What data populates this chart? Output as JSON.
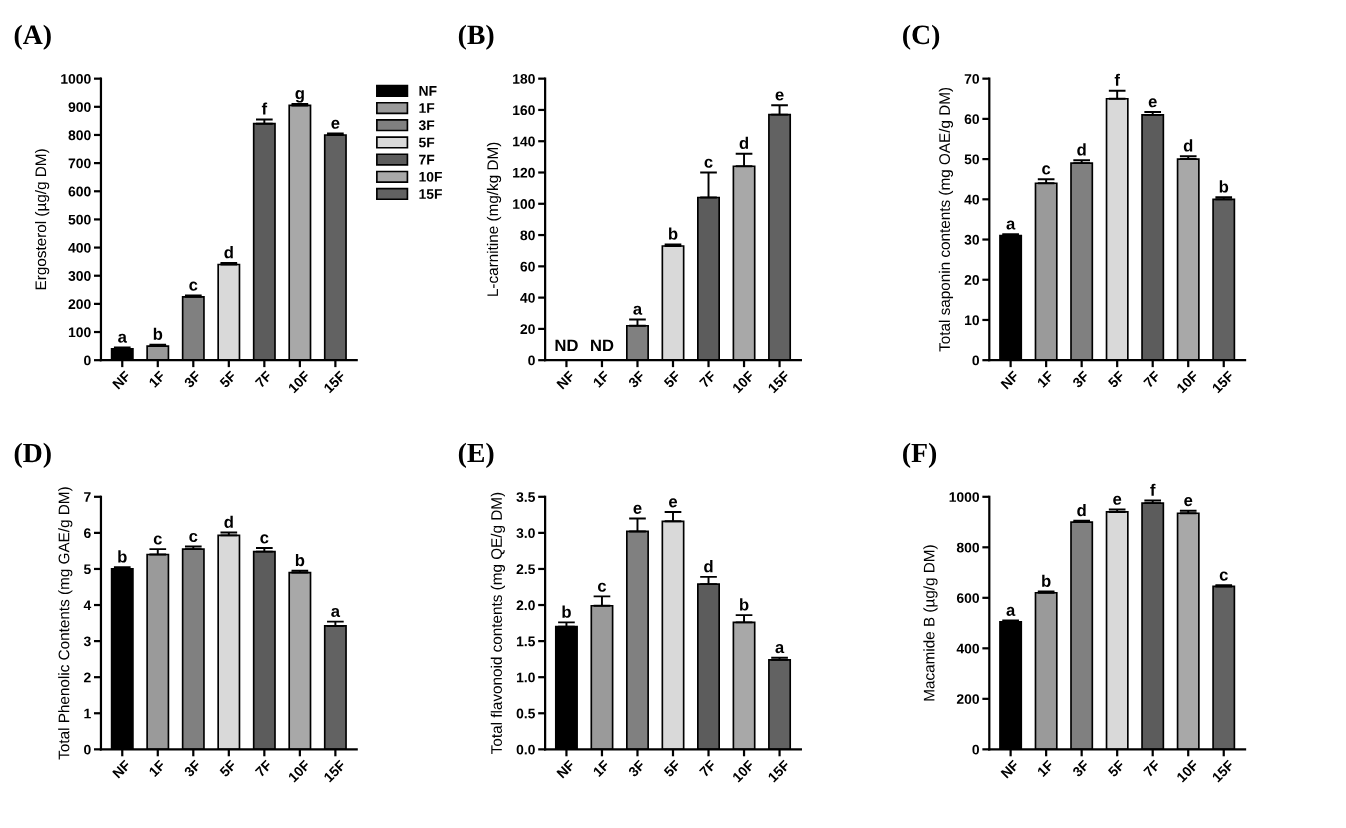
{
  "chart_data": [
    {
      "type": "bar",
      "title": "(A)",
      "ylabel": "Ergosterol (µg/g DM)",
      "categories": [
        "NF",
        "1F",
        "3F",
        "5F",
        "7F",
        "10F",
        "15F"
      ],
      "series": [
        {
          "name": "NF",
          "color": "#000000",
          "values": [
            40,
            null,
            null,
            null,
            null,
            null,
            null
          ],
          "errors": [
            [
              40,
              45
            ],
            null,
            null,
            null,
            null,
            null,
            null
          ]
        },
        {
          "name": "1F",
          "color": "#9a9a9a",
          "values": [
            null,
            50,
            null,
            null,
            null,
            null,
            null
          ],
          "errors": [
            null,
            [
              50,
              55
            ],
            null,
            null,
            null,
            null,
            null
          ]
        },
        {
          "name": "3F",
          "color": "#808080",
          "values": [
            null,
            null,
            225,
            null,
            null,
            null,
            null
          ],
          "errors": [
            null,
            null,
            [
              225,
              230
            ],
            null,
            null,
            null,
            null
          ]
        },
        {
          "name": "5F",
          "color": "#d9d9d9",
          "values": [
            null,
            null,
            null,
            340,
            null,
            null,
            null
          ],
          "errors": [
            null,
            null,
            null,
            [
              340,
              345
            ],
            null,
            null,
            null
          ]
        },
        {
          "name": "7F",
          "color": "#5c5c5c",
          "values": [
            null,
            null,
            null,
            null,
            840,
            null,
            null
          ],
          "errors": [
            null,
            null,
            null,
            null,
            [
              840,
              855
            ],
            null,
            null
          ]
        },
        {
          "name": "10F",
          "color": "#a8a8a8",
          "values": [
            null,
            null,
            null,
            null,
            null,
            905,
            null
          ],
          "errors": [
            null,
            null,
            null,
            null,
            null,
            [
              905,
              910
            ],
            null
          ]
        },
        {
          "name": "15F",
          "color": "#626262",
          "values": [
            null,
            null,
            null,
            null,
            null,
            null,
            800
          ],
          "errors": [
            null,
            null,
            null,
            null,
            null,
            null,
            [
              800,
              805
            ]
          ]
        }
      ],
      "ylim": [
        0,
        1000
      ],
      "yticks": [
        0,
        100,
        200,
        300,
        400,
        500,
        600,
        700,
        800,
        900,
        1000
      ],
      "legend": "right",
      "annotations": [
        {
          "text": "a",
          "x": "NF",
          "y": 45
        },
        {
          "text": "b",
          "x": "1F",
          "y": 55
        },
        {
          "text": "c",
          "x": "3F",
          "y": 230
        },
        {
          "text": "d",
          "x": "5F",
          "y": 345
        },
        {
          "text": "f",
          "x": "7F",
          "y": 855
        },
        {
          "text": "g",
          "x": "10F",
          "y": 910
        },
        {
          "text": "e",
          "x": "15F",
          "y": 805
        }
      ]
    },
    {
      "type": "bar",
      "title": "(B)",
      "ylabel": "L-carnitine (mg/kg DM)",
      "categories": [
        "NF",
        "1F",
        "3F",
        "5F",
        "7F",
        "10F",
        "15F"
      ],
      "values": [
        null,
        null,
        22,
        73,
        104,
        124,
        157
      ],
      "colors": [
        "#000000",
        "#9a9a9a",
        "#808080",
        "#d9d9d9",
        "#5c5c5c",
        "#a8a8a8",
        "#626262"
      ],
      "errors": [
        null,
        null,
        [
          22,
          26
        ],
        [
          73,
          74
        ],
        [
          104,
          120
        ],
        [
          124,
          132
        ],
        [
          157,
          163
        ]
      ],
      "ylim": [
        0,
        180
      ],
      "yticks": [
        0,
        20,
        40,
        60,
        80,
        100,
        120,
        140,
        160,
        180
      ],
      "annotations": [
        "ND",
        "ND",
        {
          "text": "a",
          "x": "3F",
          "y": 26
        },
        {
          "text": "b",
          "x": "5F",
          "y": 74
        },
        {
          "text": "c",
          "x": "7F",
          "y": 120
        },
        {
          "text": "d",
          "x": "10F",
          "y": 132
        },
        {
          "text": "e",
          "x": "15F",
          "y": 163
        }
      ]
    },
    {
      "type": "bar",
      "title": "(C)",
      "ylabel": "Total saponin contents (mg OAE/g DM)",
      "categories": [
        "NF",
        "1F",
        "3F",
        "5F",
        "7F",
        "10F",
        "15F"
      ],
      "values": [
        31,
        44,
        49,
        65,
        61,
        50,
        40
      ],
      "colors": [
        "#000000",
        "#9a9a9a",
        "#808080",
        "#d9d9d9",
        "#5c5c5c",
        "#a8a8a8",
        "#626262"
      ],
      "errors": [
        [
          31,
          31.3
        ],
        [
          44,
          45
        ],
        [
          49,
          49.7
        ],
        [
          65,
          67
        ],
        [
          61,
          61.7
        ],
        [
          50,
          50.7
        ],
        [
          40,
          40.5
        ]
      ],
      "ylim": [
        0,
        70
      ],
      "yticks": [
        0,
        10,
        20,
        30,
        40,
        50,
        60,
        70
      ],
      "annotations": [
        {
          "text": "a",
          "x": "NF",
          "y": 31.3
        },
        {
          "text": "c",
          "x": "1F",
          "y": 45
        },
        {
          "text": "d",
          "x": "3F",
          "y": 49.7
        },
        {
          "text": "f",
          "x": "5F",
          "y": 67
        },
        {
          "text": "e",
          "x": "7F",
          "y": 61.7
        },
        {
          "text": "d",
          "x": "10F",
          "y": 50.7
        },
        {
          "text": "b",
          "x": "15F",
          "y": 40.5
        }
      ]
    },
    {
      "type": "bar",
      "title": "(D)",
      "ylabel": "Total Phenolic Contents (mg GAE/g DM)",
      "categories": [
        "NF",
        "1F",
        "3F",
        "5F",
        "7F",
        "10F",
        "15F"
      ],
      "values": [
        5.0,
        5.4,
        5.55,
        5.93,
        5.48,
        4.9,
        3.42
      ],
      "colors": [
        "#000000",
        "#9a9a9a",
        "#808080",
        "#d9d9d9",
        "#5c5c5c",
        "#a8a8a8",
        "#626262"
      ],
      "errors": [
        [
          5.0,
          5.05
        ],
        [
          5.4,
          5.55
        ],
        [
          5.55,
          5.62
        ],
        [
          5.93,
          6.01
        ],
        [
          5.48,
          5.58
        ],
        [
          4.9,
          4.95
        ],
        [
          3.42,
          3.54
        ]
      ],
      "ylim": [
        0,
        7
      ],
      "yticks": [
        0,
        1,
        2,
        3,
        4,
        5,
        6,
        7
      ],
      "annotations": [
        {
          "text": "b",
          "x": "NF",
          "y": 5.05
        },
        {
          "text": "c",
          "x": "1F",
          "y": 5.55
        },
        {
          "text": "c",
          "x": "3F",
          "y": 5.62
        },
        {
          "text": "d",
          "x": "5F",
          "y": 6.01
        },
        {
          "text": "c",
          "x": "7F",
          "y": 5.58
        },
        {
          "text": "b",
          "x": "10F",
          "y": 4.95
        },
        {
          "text": "a",
          "x": "15F",
          "y": 3.54
        }
      ]
    },
    {
      "type": "bar",
      "title": "(E)",
      "ylabel": "Total flavonoid contents (mg QE/g DM)",
      "categories": [
        "NF",
        "1F",
        "3F",
        "5F",
        "7F",
        "10F",
        "15F"
      ],
      "values": [
        1.7,
        1.99,
        3.02,
        3.16,
        2.29,
        1.76,
        1.24
      ],
      "colors": [
        "#000000",
        "#9a9a9a",
        "#808080",
        "#d9d9d9",
        "#5c5c5c",
        "#a8a8a8",
        "#626262"
      ],
      "errors": [
        [
          1.7,
          1.76
        ],
        [
          1.99,
          2.12
        ],
        [
          3.02,
          3.2
        ],
        [
          3.16,
          3.29
        ],
        [
          2.29,
          2.39
        ],
        [
          1.76,
          1.86
        ],
        [
          1.24,
          1.27
        ]
      ],
      "ylim": [
        0,
        3.5
      ],
      "yticks": [
        {
          "value": 0,
          "label": "0.0"
        },
        0.5,
        {
          "value": 1,
          "label": "1.0"
        },
        1.5,
        {
          "value": 2,
          "label": "2.0"
        },
        2.5,
        {
          "value": 3,
          "label": "3.0"
        },
        3.5
      ],
      "annotations": [
        {
          "text": "b",
          "x": "NF",
          "y": 1.76
        },
        {
          "text": "c",
          "x": "1F",
          "y": 2.12
        },
        {
          "text": "e",
          "x": "3F",
          "y": 3.2
        },
        {
          "text": "e",
          "x": "5F",
          "y": 3.29
        },
        {
          "text": "d",
          "x": "7F",
          "y": 2.39
        },
        {
          "text": "b",
          "x": "10F",
          "y": 1.86
        },
        {
          "text": "a",
          "x": "15F",
          "y": 1.27
        }
      ]
    },
    {
      "type": "bar",
      "title": "(F)",
      "ylabel": "Macamide B (µg/g DM)",
      "categories": [
        "NF",
        "1F",
        "3F",
        "5F",
        "7F",
        "10F",
        "15F"
      ],
      "values": [
        505,
        620,
        900,
        940,
        975,
        935,
        645
      ],
      "colors": [
        "#000000",
        "#9a9a9a",
        "#808080",
        "#d9d9d9",
        "#5c5c5c",
        "#a8a8a8",
        "#626262"
      ],
      "errors": [
        [
          505,
          510
        ],
        [
          620,
          625
        ],
        [
          900,
          905
        ],
        [
          940,
          950
        ],
        [
          975,
          985
        ],
        [
          935,
          945
        ],
        [
          645,
          650
        ]
      ],
      "ylim": [
        0,
        1000
      ],
      "yticks": [
        0,
        200,
        400,
        600,
        800,
        1000
      ],
      "annotations": [
        {
          "text": "a",
          "x": "NF",
          "y": 510
        },
        {
          "text": "b",
          "x": "1F",
          "y": 625
        },
        {
          "text": "d",
          "x": "3F",
          "y": 905
        },
        {
          "text": "e",
          "x": "5F",
          "y": 950
        },
        {
          "text": "f",
          "x": "7F",
          "y": 985
        },
        {
          "text": "e",
          "x": "10F",
          "y": 945
        },
        {
          "text": "c",
          "x": "15F",
          "y": 650
        }
      ]
    }
  ]
}
